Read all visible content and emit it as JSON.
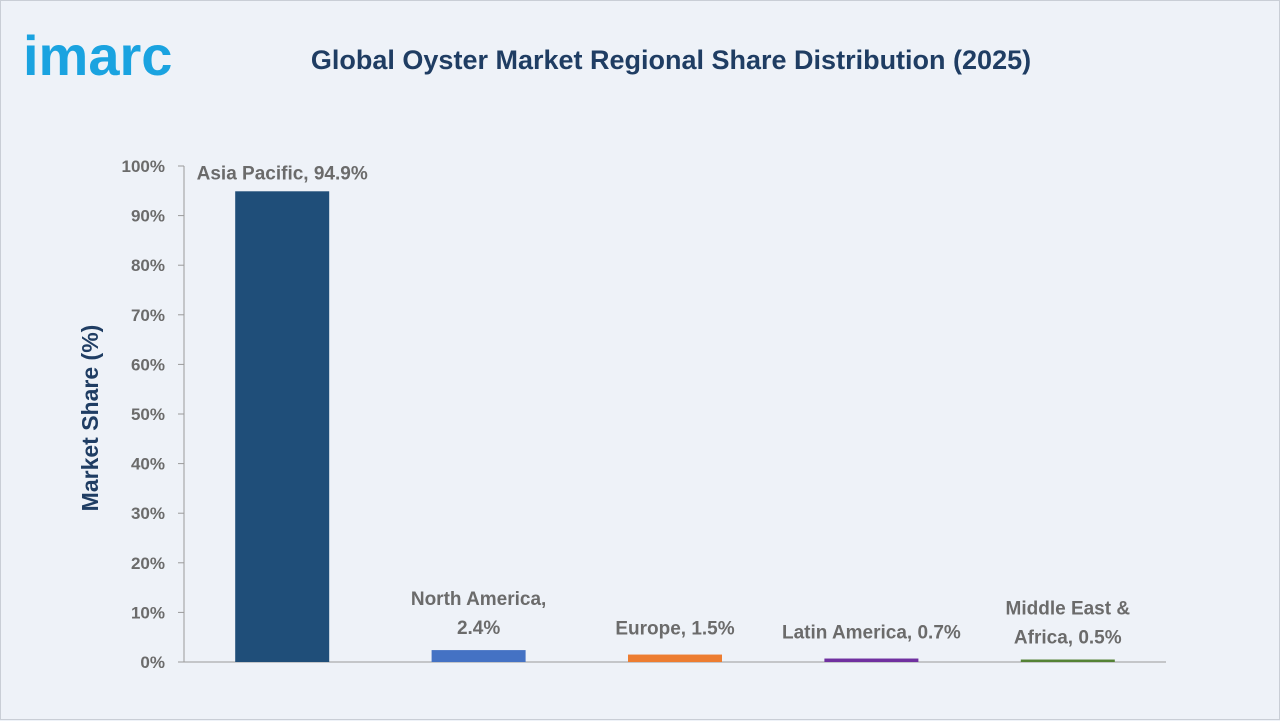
{
  "brand": {
    "logo_text": "imarc",
    "logo_color": "#1aa3e0"
  },
  "chart_data": {
    "type": "bar",
    "title": "Global Oyster Market Regional Share Distribution (2025)",
    "xlabel": "",
    "ylabel": "Market Share (%)",
    "ylim": [
      0,
      100
    ],
    "yticks": [
      "0%",
      "10%",
      "20%",
      "30%",
      "40%",
      "50%",
      "60%",
      "70%",
      "80%",
      "90%",
      "100%"
    ],
    "grid": false,
    "categories": [
      "Asia Pacific",
      "North America",
      "Europe",
      "Latin America",
      "Middle East & Africa"
    ],
    "values": [
      94.9,
      2.4,
      1.5,
      0.7,
      0.5
    ],
    "data_labels": [
      [
        "Asia Pacific, 94.9%"
      ],
      [
        "North America,",
        "2.4%"
      ],
      [
        "Europe, 1.5%"
      ],
      [
        "Latin America, 0.7%"
      ],
      [
        "Middle East &",
        "Africa, 0.5%"
      ]
    ],
    "colors": [
      "#1f4e79",
      "#4472c4",
      "#ed7d31",
      "#7030a0",
      "#548235"
    ]
  }
}
